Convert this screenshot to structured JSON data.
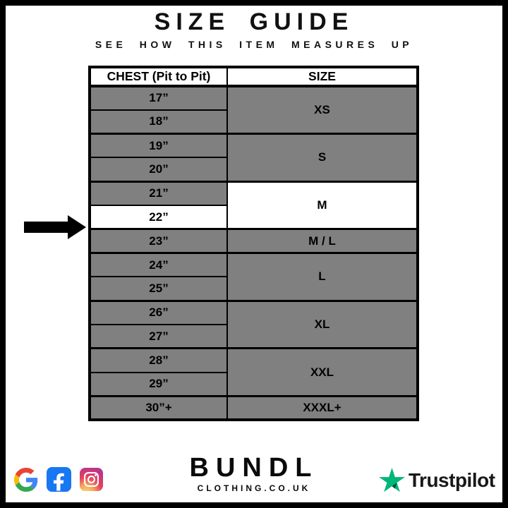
{
  "page": {
    "title": "SIZE GUIDE",
    "subtitle": "SEE HOW THIS ITEM MEASURES UP"
  },
  "colors": {
    "row_gray": "#808080",
    "highlight_white": "#FFFFFF",
    "border_black": "#000000",
    "facebook_blue": "#1877F2",
    "trustpilot_green": "#00B67A",
    "trustpilot_dark_green": "#005128"
  },
  "size_table": {
    "header": {
      "chest": "CHEST (Pit to Pit)",
      "size": "SIZE"
    },
    "groups": [
      {
        "size": "XS",
        "size_white": false,
        "rows": [
          {
            "label": "17”",
            "white": false
          },
          {
            "label": "18”",
            "white": false
          }
        ]
      },
      {
        "size": "S",
        "size_white": false,
        "rows": [
          {
            "label": "19”",
            "white": false
          },
          {
            "label": "20”",
            "white": false
          }
        ]
      },
      {
        "size": "M",
        "size_white": true,
        "rows": [
          {
            "label": "21”",
            "white": false
          },
          {
            "label": "22”",
            "white": true
          }
        ]
      },
      {
        "size": "M / L",
        "size_white": false,
        "rows": [
          {
            "label": "23”",
            "white": false
          }
        ]
      },
      {
        "size": "L",
        "size_white": false,
        "rows": [
          {
            "label": "24”",
            "white": false
          },
          {
            "label": "25”",
            "white": false
          }
        ]
      },
      {
        "size": "XL",
        "size_white": false,
        "rows": [
          {
            "label": "26”",
            "white": false
          },
          {
            "label": "27”",
            "white": false
          }
        ]
      },
      {
        "size": "XXL",
        "size_white": false,
        "rows": [
          {
            "label": "28”",
            "white": false
          },
          {
            "label": "29”",
            "white": false
          }
        ]
      },
      {
        "size": "XXXL+",
        "size_white": false,
        "rows": [
          {
            "label": "30”+",
            "white": false
          }
        ]
      }
    ]
  },
  "indicator": {
    "target_row": "22”",
    "target_size": "M"
  },
  "footer": {
    "social_icons": [
      "google-icon",
      "facebook-icon",
      "instagram-icon"
    ],
    "brand_name": "BUNDL",
    "brand_domain": "CLOTHING.CO.UK",
    "trustpilot_label": "Trustpilot"
  },
  "chart_data": {
    "type": "table",
    "title": "SIZE GUIDE",
    "subtitle": "SEE HOW THIS ITEM MEASURES UP",
    "columns": [
      "CHEST (Pit to Pit)",
      "SIZE"
    ],
    "rows": [
      [
        "17”",
        "XS"
      ],
      [
        "18”",
        "XS"
      ],
      [
        "19”",
        "S"
      ],
      [
        "20”",
        "S"
      ],
      [
        "21”",
        "M"
      ],
      [
        "22”",
        "M"
      ],
      [
        "23”",
        "M / L"
      ],
      [
        "24”",
        "L"
      ],
      [
        "25”",
        "L"
      ],
      [
        "26”",
        "XL"
      ],
      [
        "27”",
        "XL"
      ],
      [
        "28”",
        "XXL"
      ],
      [
        "29”",
        "XXL"
      ],
      [
        "30”+",
        "XXXL+"
      ]
    ],
    "highlighted_row": "22”",
    "highlighted_size": "M",
    "legend_position": "none",
    "grid": true
  }
}
